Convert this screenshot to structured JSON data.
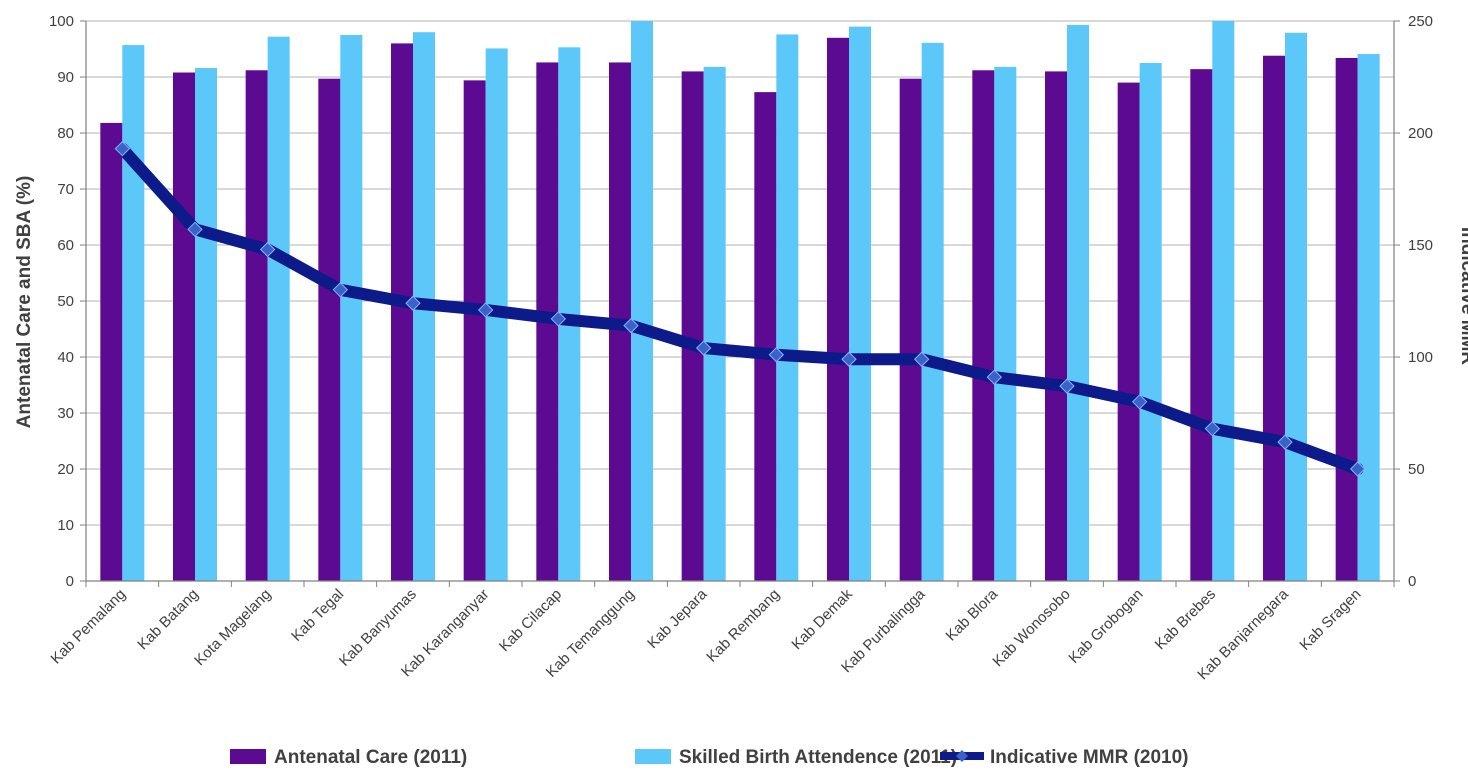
{
  "chart_data": {
    "type": "bar",
    "categories": [
      "Kab Pemalang",
      "Kab Batang",
      "Kota Magelang",
      "Kab Tegal",
      "Kab Banyumas",
      "Kab Karanganyar",
      "Kab Cilacap",
      "Kab Temanggung",
      "Kab Jepara",
      "Kab Rembang",
      "Kab Demak",
      "Kab Purbalingga",
      "Kab Blora",
      "Kab Wonosobo",
      "Kab Grobogan",
      "Kab Brebes",
      "Kab Banjarnegara",
      "Kab Sragen"
    ],
    "series": [
      {
        "name": "Antenatal Care (2011)",
        "type": "bar",
        "axis": "left",
        "color": "#5c0a92",
        "values": [
          81.8,
          90.8,
          91.2,
          89.7,
          96.0,
          89.4,
          92.6,
          92.6,
          91.0,
          87.3,
          97.0,
          89.7,
          91.2,
          91.0,
          89.0,
          91.4,
          93.8,
          93.4
        ]
      },
      {
        "name": "Skilled Birth Attendence (2011)",
        "type": "bar",
        "axis": "left",
        "color": "#5cc8fa",
        "values": [
          95.7,
          91.6,
          97.2,
          97.5,
          98.0,
          95.1,
          95.3,
          100,
          91.8,
          97.6,
          99.0,
          96.1,
          91.8,
          99.3,
          92.5,
          100,
          97.9,
          94.1
        ]
      },
      {
        "name": "Indicative MMR (2010)",
        "type": "line",
        "axis": "right",
        "color": "#0c1a8a",
        "values": [
          193,
          157,
          148,
          130,
          124,
          121,
          117,
          114,
          104,
          101,
          99,
          99,
          91,
          87,
          80,
          68,
          62,
          50
        ]
      }
    ],
    "ylabel": "Antenatal Care and SBA (%)",
    "y2label": "Indicative MMR",
    "ylim": [
      0,
      100
    ],
    "y2lim": [
      0,
      250
    ],
    "yticks": [
      "0",
      "10",
      "20",
      "30",
      "40",
      "50",
      "60",
      "70",
      "80",
      "90",
      "100"
    ],
    "y2ticks": [
      "0",
      "50",
      "100",
      "150",
      "200",
      "250"
    ],
    "grid": true,
    "legend_position": "bottom"
  }
}
